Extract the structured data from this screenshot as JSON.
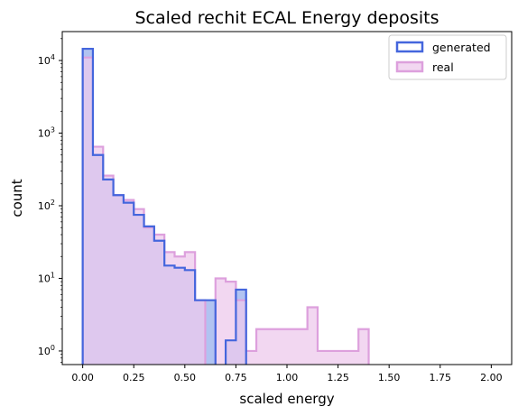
{
  "chart_data": {
    "type": "histogram",
    "title": "Scaled rechit ECAL Energy deposits",
    "xlabel": "scaled energy",
    "ylabel": "count",
    "xlim": [
      -0.1,
      2.1
    ],
    "ylim": [
      0.65,
      25000
    ],
    "yscale": "log",
    "grid": false,
    "legend_position": "top-right",
    "bin_start": 0.0,
    "bin_width": 0.05,
    "x_ticks": [
      0.0,
      0.25,
      0.5,
      0.75,
      1.0,
      1.25,
      1.5,
      1.75,
      2.0
    ],
    "x_tick_labels": [
      "0.00",
      "0.25",
      "0.50",
      "0.75",
      "1.00",
      "1.25",
      "1.50",
      "1.75",
      "2.00"
    ],
    "y_ticks": [
      1,
      10,
      100,
      1000,
      10000
    ],
    "y_tick_labels": [
      {
        "base": "10",
        "exp": "0"
      },
      {
        "base": "10",
        "exp": "1"
      },
      {
        "base": "10",
        "exp": "2"
      },
      {
        "base": "10",
        "exp": "3"
      },
      {
        "base": "10",
        "exp": "4"
      }
    ],
    "series": [
      {
        "name": "generated",
        "edge_color": "#4466dd",
        "fill_color": "#a9bdf0",
        "counts": [
          14500,
          500,
          230,
          140,
          110,
          75,
          52,
          33,
          15,
          14,
          13,
          5,
          5,
          0,
          1.4,
          7,
          0,
          0,
          0,
          0,
          0,
          0,
          0,
          0,
          0,
          0,
          0,
          0,
          0,
          0,
          0,
          0,
          0,
          0,
          0,
          0,
          0,
          0,
          0,
          0
        ]
      },
      {
        "name": "real",
        "edge_color": "#dda0dd",
        "fill_color": "#eec9ec",
        "counts": [
          11000,
          650,
          260,
          140,
          120,
          90,
          50,
          40,
          23,
          20,
          23,
          5,
          0,
          10,
          9,
          5,
          1,
          2,
          2,
          2,
          2,
          2,
          4,
          1,
          1,
          1,
          1,
          2,
          0,
          0,
          0,
          0,
          0,
          0,
          0,
          0,
          0,
          0,
          0,
          0
        ]
      }
    ]
  }
}
